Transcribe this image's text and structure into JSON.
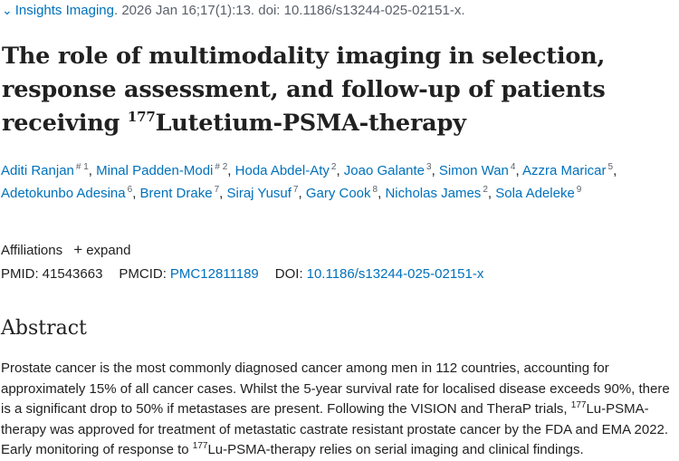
{
  "citation": {
    "journal": "Insights Imaging",
    "details": "2026 Jan 16;17(1):13. doi: 10.1186/s13244-025-02151-x."
  },
  "article": {
    "title_part1": "The role of multimodality imaging in selection, response assessment, and follow-up of patients receiving ",
    "title_sup": "177",
    "title_part2": "Lutetium-PSMA-therapy"
  },
  "authors": [
    {
      "name": "Aditi Ranjan",
      "sup": "# 1"
    },
    {
      "name": "Minal Padden-Modi",
      "sup": "# 2"
    },
    {
      "name": "Hoda Abdel-Aty",
      "sup": "2"
    },
    {
      "name": "Joao Galante",
      "sup": "3"
    },
    {
      "name": "Simon Wan",
      "sup": "4"
    },
    {
      "name": "Azzra Maricar",
      "sup": "5"
    },
    {
      "name": "Adetokunbo Adesina",
      "sup": "6"
    },
    {
      "name": "Brent Drake",
      "sup": "7"
    },
    {
      "name": "Siraj Yusuf",
      "sup": "7"
    },
    {
      "name": "Gary Cook",
      "sup": "8"
    },
    {
      "name": "Nicholas James",
      "sup": "2"
    },
    {
      "name": "Sola Adeleke",
      "sup": "9"
    }
  ],
  "affiliations": {
    "label": "Affiliations",
    "expand_icon": "plus-icon",
    "expand_label": "expand"
  },
  "identifiers": {
    "pmid_label": "PMID:",
    "pmid": "41543663",
    "pmcid_label": "PMCID:",
    "pmcid": "PMC12811189",
    "doi_label": "DOI:",
    "doi": "10.1186/s13244-025-02151-x"
  },
  "abstract": {
    "heading": "Abstract",
    "text_part1": "Prostate cancer is the most commonly diagnosed cancer among men in 112 countries, accounting for approximately 15% of all cancer cases. Whilst the 5-year survival rate for localised disease exceeds 90%, there is a significant drop to 50% if metastases are present. Following the VISION and TheraP trials, ",
    "text_sup": "177",
    "text_part2": "Lu-PSMA-therapy was approved for treatment of metastatic castrate resistant prostate cancer by the FDA and EMA 2022. Early monitoring of response to ",
    "text_sup2": "177",
    "text_part3": "Lu-PSMA-therapy relies on serial imaging and clinical findings."
  }
}
